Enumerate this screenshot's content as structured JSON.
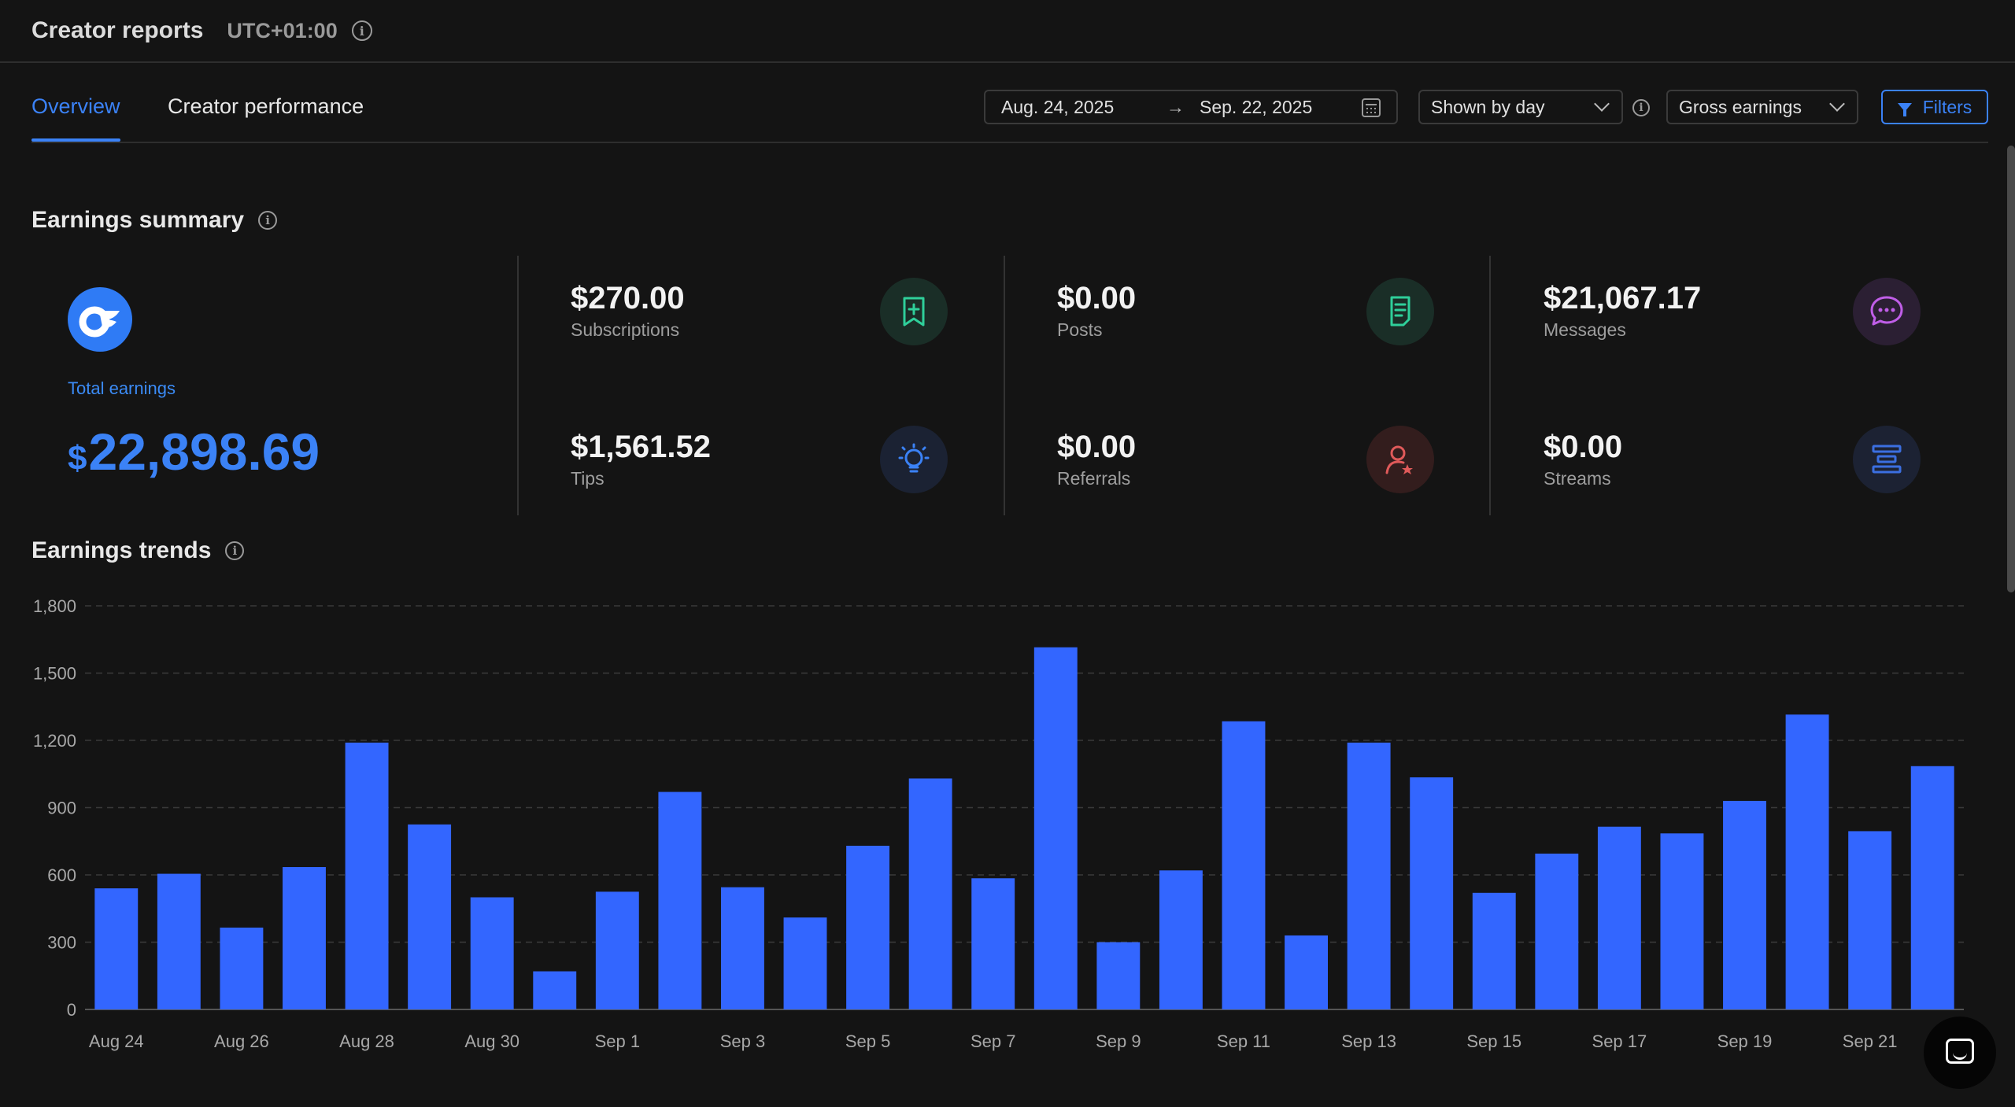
{
  "header": {
    "title": "Creator reports",
    "timezone": "UTC+01:00"
  },
  "tabs": [
    {
      "label": "Overview",
      "active": true
    },
    {
      "label": "Creator performance",
      "active": false
    }
  ],
  "controls": {
    "date_start": "Aug. 24, 2025",
    "date_arrow": "→",
    "date_end": "Sep. 22, 2025",
    "shown_by": "Shown by day",
    "metric": "Gross earnings",
    "filters_label": "Filters"
  },
  "summary": {
    "title": "Earnings summary",
    "total_label": "Total earnings",
    "total_currency": "$",
    "total_value": "22,898.69",
    "metrics": [
      {
        "value": "$270.00",
        "label": "Subscriptions",
        "icon": "bookmark-plus-icon",
        "color": "#2fcf9a",
        "bg": "#1a2e27"
      },
      {
        "value": "$0.00",
        "label": "Posts",
        "icon": "document-icon",
        "color": "#2fcf9a",
        "bg": "#1a2e27"
      },
      {
        "value": "$21,067.17",
        "label": "Messages",
        "icon": "chat-bubble-icon",
        "color": "#c05ee8",
        "bg": "#2b1f33"
      },
      {
        "value": "$1,561.52",
        "label": "Tips",
        "icon": "lightbulb-icon",
        "color": "#3b82f6",
        "bg": "#1b2233"
      },
      {
        "value": "$0.00",
        "label": "Referrals",
        "icon": "user-star-icon",
        "color": "#e05a5a",
        "bg": "#331d1d"
      },
      {
        "value": "$0.00",
        "label": "Streams",
        "icon": "streams-icon",
        "color": "#3b6fe0",
        "bg": "#1c2233"
      }
    ]
  },
  "trends": {
    "title": "Earnings trends"
  },
  "chart_data": {
    "type": "bar",
    "title": "",
    "xlabel": "",
    "ylabel": "",
    "ylim": [
      0,
      1800
    ],
    "yticks": [
      "0",
      "300",
      "600",
      "900",
      "1,200",
      "1,500",
      "1,800"
    ],
    "grid": true,
    "color": "#3366ff",
    "categories": [
      "Aug 24",
      "Aug 25",
      "Aug 26",
      "Aug 27",
      "Aug 28",
      "Aug 29",
      "Aug 30",
      "Aug 31",
      "Sep 1",
      "Sep 2",
      "Sep 3",
      "Sep 4",
      "Sep 5",
      "Sep 6",
      "Sep 7",
      "Sep 8",
      "Sep 9",
      "Sep 10",
      "Sep 11",
      "Sep 12",
      "Sep 13",
      "Sep 14",
      "Sep 15",
      "Sep 16",
      "Sep 17",
      "Sep 18",
      "Sep 19",
      "Sep 20",
      "Sep 21",
      "Sep 22"
    ],
    "xtick_labels": [
      "Aug 24",
      "Aug 26",
      "Aug 28",
      "Aug 30",
      "Sep 1",
      "Sep 3",
      "Sep 5",
      "Sep 7",
      "Sep 9",
      "Sep 11",
      "Sep 13",
      "Sep 15",
      "Sep 17",
      "Sep 19",
      "Sep 21"
    ],
    "values": [
      540,
      605,
      365,
      635,
      1190,
      825,
      500,
      170,
      525,
      970,
      545,
      410,
      730,
      1030,
      585,
      1615,
      300,
      620,
      1285,
      330,
      1190,
      1035,
      520,
      695,
      815,
      785,
      930,
      1315,
      795,
      1085
    ]
  }
}
